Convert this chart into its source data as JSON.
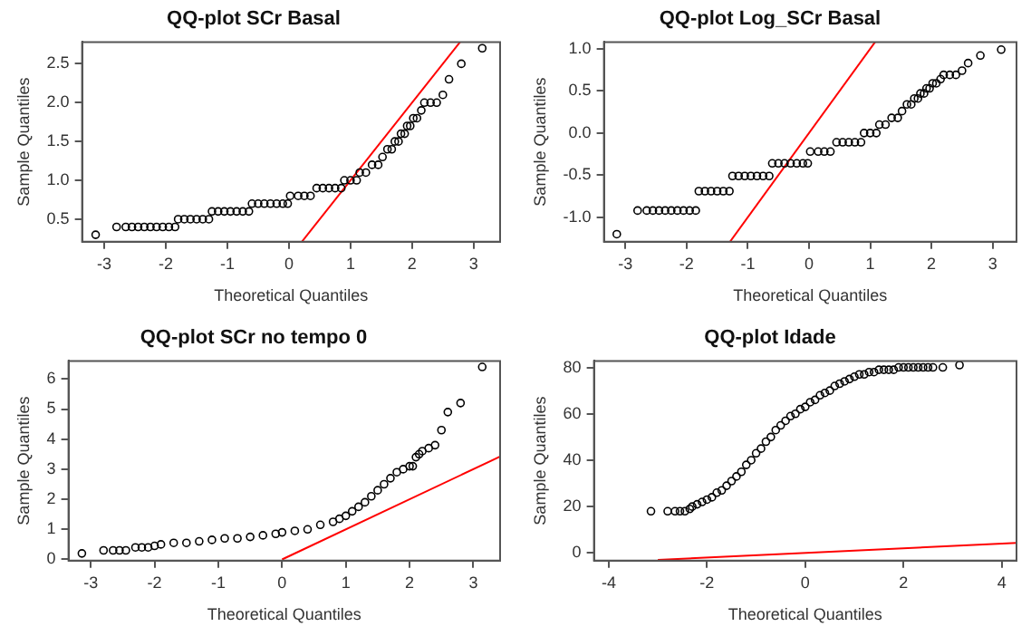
{
  "chart_data": [
    {
      "type": "scatter",
      "title": "QQ-plot SCr Basal",
      "xlabel": "Theoretical Quantiles",
      "ylabel": "Sample Quantiles",
      "grid": false,
      "legend": false,
      "marker": "circle",
      "xlim": [
        -3.36,
        3.43
      ],
      "ylim": [
        0.21,
        2.78
      ],
      "xticks": [
        -3,
        -2,
        -1,
        0,
        1,
        2,
        3
      ],
      "yticks": [
        {
          "value": 0.5,
          "label": "0.5"
        },
        {
          "value": 1,
          "label": "1.0"
        },
        {
          "value": 1.5,
          "label": "1.5"
        },
        {
          "value": 2,
          "label": "2.0"
        },
        {
          "value": 2.5,
          "label": "2.5"
        }
      ],
      "series": [
        {
          "color": "#000000",
          "x": [
            -3.14,
            -2.8,
            -2.65,
            -2.55,
            -2.45,
            -2.35,
            -2.25,
            -2.15,
            -2.05,
            -1.95,
            -1.85,
            -1.8,
            -1.7,
            -1.6,
            -1.5,
            -1.4,
            -1.3,
            -1.25,
            -1.15,
            -1.05,
            -0.95,
            -0.85,
            -0.75,
            -0.65,
            -0.6,
            -0.5,
            -0.4,
            -0.3,
            -0.2,
            -0.1,
            -0.02,
            0.02,
            0.15,
            0.25,
            0.35,
            0.45,
            0.55,
            0.65,
            0.75,
            0.85,
            0.9,
            1.0,
            1.1,
            1.15,
            1.25,
            1.35,
            1.45,
            1.52,
            1.6,
            1.67,
            1.72,
            1.78,
            1.82,
            1.88,
            1.92,
            1.97,
            2.02,
            2.08,
            2.15,
            2.2,
            2.3,
            2.4,
            2.5,
            2.6,
            2.8,
            3.14
          ],
          "values": [
            0.3,
            0.4,
            0.4,
            0.4,
            0.4,
            0.4,
            0.4,
            0.4,
            0.4,
            0.4,
            0.4,
            0.5,
            0.5,
            0.5,
            0.5,
            0.5,
            0.5,
            0.6,
            0.6,
            0.6,
            0.6,
            0.6,
            0.6,
            0.6,
            0.7,
            0.7,
            0.7,
            0.7,
            0.7,
            0.7,
            0.7,
            0.8,
            0.8,
            0.8,
            0.8,
            0.9,
            0.9,
            0.9,
            0.9,
            0.9,
            1.0,
            1.0,
            1.0,
            1.1,
            1.1,
            1.2,
            1.2,
            1.3,
            1.4,
            1.4,
            1.5,
            1.5,
            1.6,
            1.6,
            1.7,
            1.7,
            1.8,
            1.8,
            1.9,
            2.0,
            2.0,
            2.0,
            2.1,
            2.3,
            2.5,
            2.7
          ]
        },
        {
          "type": "line",
          "color": "#ff0000",
          "marker": "none",
          "x": [
            0.21,
            2.78
          ],
          "values": [
            0.21,
            2.78
          ]
        }
      ]
    },
    {
      "type": "scatter",
      "title": "QQ-plot Log_SCr Basal",
      "xlabel": "Theoretical Quantiles",
      "ylabel": "Sample Quantiles",
      "grid": false,
      "legend": false,
      "marker": "circle",
      "xlim": [
        -3.35,
        3.39
      ],
      "ylim": [
        -1.29,
        1.08
      ],
      "xticks": [
        -3,
        -2,
        -1,
        0,
        1,
        2,
        3
      ],
      "yticks": [
        {
          "value": -1,
          "label": "-1.0"
        },
        {
          "value": -0.5,
          "label": "-0.5"
        },
        {
          "value": 0,
          "label": "0.0"
        },
        {
          "value": 0.5,
          "label": "0.5"
        },
        {
          "value": 1,
          "label": "1.0"
        }
      ],
      "series": [
        {
          "color": "#000000",
          "x": [
            -3.14,
            -2.8,
            -2.65,
            -2.55,
            -2.45,
            -2.35,
            -2.25,
            -2.15,
            -2.05,
            -1.95,
            -1.85,
            -1.8,
            -1.7,
            -1.6,
            -1.5,
            -1.4,
            -1.3,
            -1.25,
            -1.15,
            -1.05,
            -0.95,
            -0.85,
            -0.75,
            -0.65,
            -0.6,
            -0.5,
            -0.4,
            -0.3,
            -0.2,
            -0.1,
            -0.02,
            0.02,
            0.15,
            0.25,
            0.35,
            0.45,
            0.55,
            0.65,
            0.75,
            0.85,
            0.9,
            1.0,
            1.1,
            1.15,
            1.25,
            1.35,
            1.45,
            1.52,
            1.6,
            1.67,
            1.72,
            1.78,
            1.82,
            1.88,
            1.92,
            1.97,
            2.02,
            2.08,
            2.15,
            2.2,
            2.3,
            2.4,
            2.5,
            2.6,
            2.8,
            3.14
          ],
          "values": [
            -1.2,
            -0.92,
            -0.92,
            -0.92,
            -0.92,
            -0.92,
            -0.92,
            -0.92,
            -0.92,
            -0.92,
            -0.92,
            -0.69,
            -0.69,
            -0.69,
            -0.69,
            -0.69,
            -0.69,
            -0.51,
            -0.51,
            -0.51,
            -0.51,
            -0.51,
            -0.51,
            -0.51,
            -0.36,
            -0.36,
            -0.36,
            -0.36,
            -0.36,
            -0.36,
            -0.36,
            -0.22,
            -0.22,
            -0.22,
            -0.22,
            -0.11,
            -0.11,
            -0.11,
            -0.11,
            -0.11,
            0.0,
            0.0,
            0.0,
            0.1,
            0.1,
            0.18,
            0.18,
            0.26,
            0.34,
            0.34,
            0.41,
            0.41,
            0.47,
            0.47,
            0.53,
            0.53,
            0.59,
            0.59,
            0.64,
            0.69,
            0.69,
            0.69,
            0.74,
            0.83,
            0.92,
            0.99
          ]
        },
        {
          "type": "line",
          "color": "#ff0000",
          "marker": "none",
          "x": [
            -1.29,
            1.08
          ],
          "values": [
            -1.29,
            1.08
          ]
        }
      ]
    },
    {
      "type": "scatter",
      "title": "QQ-plot SCr no tempo 0",
      "xlabel": "Theoretical Quantiles",
      "ylabel": "Sample Quantiles",
      "grid": false,
      "legend": false,
      "marker": "circle",
      "xlim": [
        -3.35,
        3.42
      ],
      "ylim": [
        -0.04,
        6.6
      ],
      "xticks": [
        -3,
        -2,
        -1,
        0,
        1,
        2,
        3
      ],
      "yticks": [
        0,
        1,
        2,
        3,
        4,
        5,
        6
      ],
      "series": [
        {
          "color": "#000000",
          "x": [
            -3.14,
            -2.8,
            -2.65,
            -2.55,
            -2.45,
            -2.3,
            -2.2,
            -2.1,
            -2.0,
            -1.9,
            -1.7,
            -1.5,
            -1.3,
            -1.1,
            -0.9,
            -0.7,
            -0.5,
            -0.3,
            -0.1,
            0.0,
            0.2,
            0.4,
            0.6,
            0.8,
            0.9,
            1.0,
            1.1,
            1.2,
            1.3,
            1.4,
            1.5,
            1.6,
            1.7,
            1.8,
            1.9,
            2.0,
            2.05,
            2.1,
            2.15,
            2.2,
            2.3,
            2.4,
            2.5,
            2.6,
            2.8,
            3.14
          ],
          "values": [
            0.2,
            0.3,
            0.3,
            0.3,
            0.3,
            0.4,
            0.4,
            0.4,
            0.45,
            0.5,
            0.55,
            0.55,
            0.6,
            0.65,
            0.7,
            0.7,
            0.75,
            0.8,
            0.85,
            0.9,
            0.95,
            1.0,
            1.15,
            1.25,
            1.35,
            1.45,
            1.6,
            1.75,
            1.9,
            2.1,
            2.3,
            2.5,
            2.7,
            2.9,
            3.0,
            3.1,
            3.1,
            3.4,
            3.5,
            3.6,
            3.7,
            3.8,
            4.3,
            4.9,
            5.2,
            6.4
          ]
        },
        {
          "type": "line",
          "color": "#ff0000",
          "marker": "none",
          "x": [
            0,
            3.42
          ],
          "values": [
            0,
            3.42
          ]
        }
      ]
    },
    {
      "type": "scatter",
      "title": "QQ-plot Idade",
      "xlabel": "Theoretical Quantiles",
      "ylabel": "Sample Quantiles",
      "grid": false,
      "legend": false,
      "marker": "circle",
      "xlim": [
        -4.3,
        4.3
      ],
      "ylim": [
        -3.3,
        82.8
      ],
      "xticks": [
        -4,
        -2,
        0,
        2,
        4
      ],
      "yticks": [
        0,
        20,
        40,
        60,
        80
      ],
      "series": [
        {
          "color": "#000000",
          "x": [
            -3.14,
            -2.8,
            -2.65,
            -2.55,
            -2.45,
            -2.35,
            -2.3,
            -2.2,
            -2.1,
            -2.0,
            -1.9,
            -1.8,
            -1.7,
            -1.6,
            -1.5,
            -1.4,
            -1.3,
            -1.2,
            -1.1,
            -1.0,
            -0.9,
            -0.8,
            -0.7,
            -0.6,
            -0.5,
            -0.4,
            -0.3,
            -0.2,
            -0.1,
            0.0,
            0.1,
            0.2,
            0.3,
            0.4,
            0.5,
            0.6,
            0.7,
            0.8,
            0.9,
            1.0,
            1.1,
            1.2,
            1.3,
            1.4,
            1.5,
            1.6,
            1.7,
            1.8,
            1.9,
            2.0,
            2.1,
            2.2,
            2.3,
            2.4,
            2.5,
            2.6,
            2.8,
            3.14
          ],
          "values": [
            18,
            18,
            18,
            18,
            18,
            19,
            20,
            21,
            22,
            23,
            24,
            26,
            27,
            29,
            31,
            33,
            35,
            38,
            40,
            43,
            45,
            48,
            50,
            53,
            55,
            57,
            59,
            60,
            62,
            63,
            65,
            66,
            68,
            69,
            70,
            72,
            73,
            74,
            75,
            76,
            77,
            77,
            78,
            78,
            79,
            79,
            79,
            79,
            80,
            80,
            80,
            80,
            80,
            80,
            80,
            80,
            80,
            81
          ]
        },
        {
          "type": "line",
          "color": "#ff0000",
          "marker": "none",
          "x": [
            -3,
            4.3
          ],
          "values": [
            -3,
            4.3
          ]
        }
      ]
    }
  ]
}
